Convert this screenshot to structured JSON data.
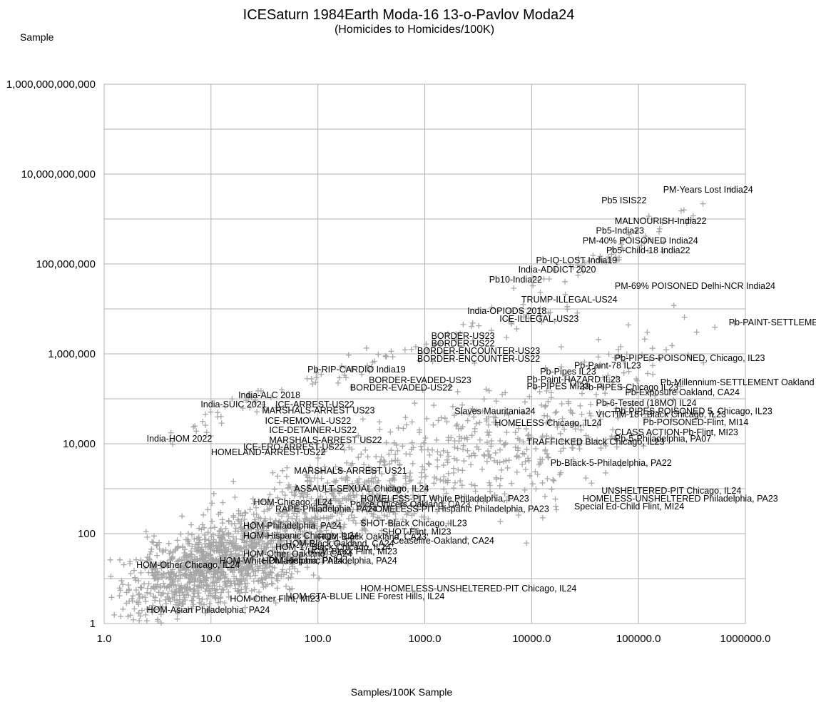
{
  "chart_data": {
    "type": "scatter",
    "title": "ICESaturn 1984Earth Moda-16 13-o-Pavlov Moda24",
    "subtitle": "(Homicides to Homicides/100K)",
    "ylabel": "Sample",
    "xlabel": "Samples/100K Sample",
    "x_scale": "log",
    "y_scale": "log",
    "xlim": [
      1,
      1000000
    ],
    "ylim": [
      1,
      1000000000000
    ],
    "grid": true,
    "marker": "plus",
    "marker_color": "#a6a6a6",
    "x_ticks": [
      "1.0",
      "10.0",
      "100.0",
      "1000.0",
      "10000.0",
      "100000.0",
      "1000000.0"
    ],
    "y_ticks": [
      "1",
      "100",
      "10,000",
      "1,000,000",
      "100,000,000",
      "10,000,000,000",
      "1,000,000,000,000"
    ],
    "annotations": [
      {
        "text": "PM-Years Lost India24",
        "x": 170000,
        "y": 4500000000
      },
      {
        "text": "Pb5 ISIS22",
        "x": 45000,
        "y": 2600000000
      },
      {
        "text": "MALNOURISH-India22",
        "x": 60000,
        "y": 900000000
      },
      {
        "text": "Pb5-India23",
        "x": 40000,
        "y": 550000000
      },
      {
        "text": "PM-40% POISONED India24",
        "x": 30000,
        "y": 330000000
      },
      {
        "text": "Pb5-Child-18 India22",
        "x": 50000,
        "y": 200000000
      },
      {
        "text": "Pb-IQ-LOST India19",
        "x": 11000,
        "y": 120000000
      },
      {
        "text": "India-ADDICT 2020",
        "x": 7500,
        "y": 75000000
      },
      {
        "text": "Pb10-India22",
        "x": 4000,
        "y": 45000000
      },
      {
        "text": "PM-69% POISONED Delhi-NCR India24",
        "x": 60000,
        "y": 32000000
      },
      {
        "text": "TRUMP-ILLEGAL-US24",
        "x": 8000,
        "y": 16000000
      },
      {
        "text": "India-OPIODS 2018",
        "x": 2500,
        "y": 9000000
      },
      {
        "text": "ICE-ILLEGAL-US23",
        "x": 5000,
        "y": 6000000
      },
      {
        "text": "Pb-PAINT-SETTLEMENT",
        "x": 700000,
        "y": 5000000
      },
      {
        "text": "BORDER-US23",
        "x": 1150,
        "y": 2500000
      },
      {
        "text": "BORDER-US22",
        "x": 1150,
        "y": 1700000
      },
      {
        "text": "BORDER-ENCOUNTER-US23",
        "x": 850,
        "y": 1150000
      },
      {
        "text": "BORDER-ENCOUNTER-US22",
        "x": 850,
        "y": 780000
      },
      {
        "text": "Pb-PIPES-POISONED, Chicago, IL23",
        "x": 60000,
        "y": 800000
      },
      {
        "text": "Pb-Paint-78 IL23",
        "x": 25000,
        "y": 550000
      },
      {
        "text": "Pb-RIP-CARDIO India19",
        "x": 80,
        "y": 450000
      },
      {
        "text": "Pb-Pipes IL23",
        "x": 12000,
        "y": 400000
      },
      {
        "text": "Pb-Paint-HAZARD IL23",
        "x": 9000,
        "y": 270000
      },
      {
        "text": "BORDER-EVADED-US23",
        "x": 300,
        "y": 260000
      },
      {
        "text": "Pb-Millennium-SETTLEMENT Oakland",
        "x": 160000,
        "y": 230000
      },
      {
        "text": "Pb-PIPES MI23",
        "x": 9000,
        "y": 190000
      },
      {
        "text": "Pb-PIPES-Chicago IL23",
        "x": 30000,
        "y": 180000
      },
      {
        "text": "BORDER-EVADED-US22",
        "x": 200,
        "y": 175000
      },
      {
        "text": "Pb-Exposure Oakland, CA24",
        "x": 75000,
        "y": 140000
      },
      {
        "text": "India-ALC 2018",
        "x": 18,
        "y": 120000
      },
      {
        "text": "Pb-6-Tested (18MO) IL24",
        "x": 40000,
        "y": 80000
      },
      {
        "text": "India-SUIC 2021",
        "x": 8,
        "y": 75000
      },
      {
        "text": "ICE-ARREST-US22",
        "x": 40,
        "y": 75000
      },
      {
        "text": "MARSHALS-ARREST US23",
        "x": 30,
        "y": 55000
      },
      {
        "text": "Slaves Mauritania24",
        "x": 1900,
        "y": 53000
      },
      {
        "text": "Pb-PIPES-POISONED 5, Chicago, IL23",
        "x": 60000,
        "y": 53000
      },
      {
        "text": "VICTIM-18+ Black Chicago, IL23",
        "x": 40000,
        "y": 45000
      },
      {
        "text": "ICE-REMOVAL-US22",
        "x": 32,
        "y": 32000
      },
      {
        "text": "Pb-POISONED-Flint, MI14",
        "x": 110000,
        "y": 30000
      },
      {
        "text": "HOMELESS Chicago, IL24",
        "x": 4500,
        "y": 29000
      },
      {
        "text": "ICE-DETAINER-US22",
        "x": 35,
        "y": 20000
      },
      {
        "text": "CLASS ACTION-Pb-Flint, MI23",
        "x": 60000,
        "y": 18000
      },
      {
        "text": "India-HOM 2022",
        "x": 2.5,
        "y": 13000
      },
      {
        "text": "MARSHALS-ARREST US22",
        "x": 35,
        "y": 12000
      },
      {
        "text": "Pb-5-Philadelphia, PA07",
        "x": 60000,
        "y": 13000
      },
      {
        "text": "TRAFFICKED Black Chicago, IL23",
        "x": 9000,
        "y": 11000
      },
      {
        "text": "ICE-ERO-ARREST-US22",
        "x": 20,
        "y": 8500
      },
      {
        "text": "HOMELAND-ARREST-US22",
        "x": 10,
        "y": 6500
      },
      {
        "text": "Pb-Black-5-Philadelphia, PA22",
        "x": 15000,
        "y": 3700
      },
      {
        "text": "MARSHALS-ARREST US21",
        "x": 60,
        "y": 2500
      },
      {
        "text": "ASSAULT-SEXUAL Chicago, IL24",
        "x": 60,
        "y": 1000
      },
      {
        "text": "UNSHELTERED-PIT Chicago, IL24",
        "x": 45000,
        "y": 900
      },
      {
        "text": "HOMELESS-UNSHELTERED Philadelphia, PA23",
        "x": 30000,
        "y": 600
      },
      {
        "text": "HOMELESS-PIT White Philadelphia, PA23",
        "x": 250,
        "y": 600
      },
      {
        "text": "HOM-Chicago, IL24",
        "x": 25,
        "y": 500
      },
      {
        "text": "Police Officers Oakland, CA23",
        "x": 200,
        "y": 450
      },
      {
        "text": "Special Ed-Child Flint, MI24",
        "x": 25000,
        "y": 400
      },
      {
        "text": "RAPE-Philadelphia, PA24",
        "x": 40,
        "y": 350
      },
      {
        "text": "HOMELESS-PIT-Hispanic Philadelphia, PA23",
        "x": 300,
        "y": 350
      },
      {
        "text": "SHOT-Black Chicago, IL23",
        "x": 250,
        "y": 170
      },
      {
        "text": "HOM-Philadelphia, PA24",
        "x": 20,
        "y": 150
      },
      {
        "text": "SHOT-Flint, MI23",
        "x": 400,
        "y": 110
      },
      {
        "text": "HOM-Hispanic Chicago, IL24",
        "x": 20,
        "y": 90
      },
      {
        "text": "HOM-Black Oakland, CA23",
        "x": 100,
        "y": 85
      },
      {
        "text": "Ceasefire-Oakland, CA24",
        "x": 500,
        "y": 70
      },
      {
        "text": "HOM-Black Oakland, CA24",
        "x": 50,
        "y": 60
      },
      {
        "text": "HOM-17 Black Chicago, IL24",
        "x": 40,
        "y": 50
      },
      {
        "text": "HOM-Black Flint, MI23",
        "x": 80,
        "y": 40
      },
      {
        "text": "HOM-Other Oakland, CA24",
        "x": 20,
        "y": 35
      },
      {
        "text": "HOM-Hispanic Philadelphia, PA24",
        "x": 30,
        "y": 25
      },
      {
        "text": "HOM-White Philadelphia, PA24",
        "x": 12,
        "y": 25
      },
      {
        "text": "HOM-Other Chicago, IL24",
        "x": 2,
        "y": 20
      },
      {
        "text": "HOM-HOMELESS-UNSHELTERED-PIT Chicago, IL24",
        "x": 250,
        "y": 6
      },
      {
        "text": "HOM-CTA-BLUE LINE Forest Hills, IL24",
        "x": 50,
        "y": 4
      },
      {
        "text": "HOM-Other Flint, MI23",
        "x": 15,
        "y": 3.5
      },
      {
        "text": "HOM-Asian Philadelphia, PA24",
        "x": 2.5,
        "y": 2
      }
    ]
  }
}
